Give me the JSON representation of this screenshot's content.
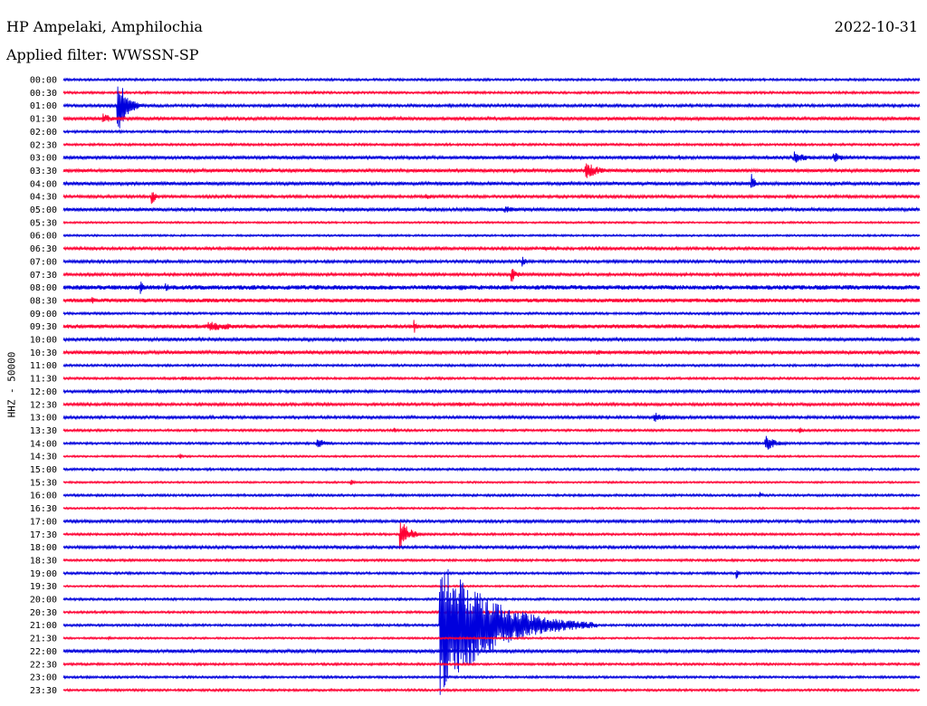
{
  "header": {
    "station": "HP Ampelaki, Amphilochia",
    "filter": "Applied filter: WWSSN-SP",
    "date": "2022-10-31"
  },
  "chart_data": {
    "type": "line",
    "title": "HP Ampelaki, Amphilochia",
    "subtitle": "Applied filter: WWSSN-SP",
    "date": "2022-10-31",
    "ylabel": "HHZ - 50000",
    "colors": {
      "even_trace": "#0000dd",
      "odd_trace": "#ff0033"
    },
    "y_ticks": [
      "00:00",
      "00:30",
      "01:00",
      "01:30",
      "02:00",
      "02:30",
      "03:00",
      "03:30",
      "04:00",
      "04:30",
      "05:00",
      "05:30",
      "06:00",
      "06:30",
      "07:00",
      "07:30",
      "08:00",
      "08:30",
      "09:00",
      "09:30",
      "10:00",
      "10:30",
      "11:00",
      "11:30",
      "12:00",
      "12:30",
      "13:00",
      "13:30",
      "14:00",
      "14:30",
      "15:00",
      "15:30",
      "16:00",
      "16:30",
      "17:00",
      "17:30",
      "18:00",
      "18:30",
      "19:00",
      "19:30",
      "20:00",
      "20:30",
      "21:00",
      "21:30",
      "22:00",
      "22:30",
      "23:00",
      "23:30"
    ],
    "x_range_minutes": [
      0,
      30
    ],
    "noise_level": [
      1.2,
      1.2,
      1.5,
      1.8,
      1.2,
      1.2,
      1.8,
      1.8,
      1.8,
      1.5,
      1.8,
      1.0,
      1.0,
      1.5,
      1.5,
      1.5,
      2.5,
      2.2,
      1.2,
      2.2,
      1.8,
      1.8,
      1.2,
      1.2,
      1.5,
      1.5,
      1.5,
      1.2,
      1.2,
      1.0,
      1.2,
      1.0,
      1.2,
      1.0,
      1.5,
      1.2,
      1.5,
      1.2,
      1.2,
      1.0,
      1.2,
      1.2,
      1.2,
      1.0,
      1.8,
      1.2,
      1.2,
      1.2
    ],
    "events": [
      {
        "trace": 2,
        "minute": 1.9,
        "amplitude": 35,
        "duration": 1.0
      },
      {
        "trace": 1,
        "minute": 2.9,
        "amplitude": 3,
        "duration": 0.3
      },
      {
        "trace": 1,
        "minute": 8.8,
        "amplitude": 3,
        "duration": 0.3
      },
      {
        "trace": 3,
        "minute": 1.4,
        "amplitude": 6,
        "duration": 1.3
      },
      {
        "trace": 4,
        "minute": 3.6,
        "amplitude": 3,
        "duration": 0.3
      },
      {
        "trace": 6,
        "minute": 25.6,
        "amplitude": 7,
        "duration": 1.5
      },
      {
        "trace": 6,
        "minute": 27.0,
        "amplitude": 6,
        "duration": 1.2
      },
      {
        "trace": 6,
        "minute": 21.6,
        "amplitude": 3,
        "duration": 0.6
      },
      {
        "trace": 7,
        "minute": 18.3,
        "amplitude": 10,
        "duration": 1.6
      },
      {
        "trace": 8,
        "minute": 24.1,
        "amplitude": 12,
        "duration": 0.4
      },
      {
        "trace": 9,
        "minute": 3.1,
        "amplitude": 10,
        "duration": 0.4
      },
      {
        "trace": 9,
        "minute": 12.7,
        "amplitude": 4,
        "duration": 1.0
      },
      {
        "trace": 10,
        "minute": 15.5,
        "amplitude": 4,
        "duration": 2.0
      },
      {
        "trace": 13,
        "minute": 16.8,
        "amplitude": 3,
        "duration": 1.2
      },
      {
        "trace": 14,
        "minute": 16.1,
        "amplitude": 6,
        "duration": 0.4
      },
      {
        "trace": 15,
        "minute": 15.7,
        "amplitude": 10,
        "duration": 0.6
      },
      {
        "trace": 16,
        "minute": 2.7,
        "amplitude": 8,
        "duration": 0.4
      },
      {
        "trace": 16,
        "minute": 3.6,
        "amplitude": 5,
        "duration": 0.6
      },
      {
        "trace": 16,
        "minute": 13.9,
        "amplitude": 5,
        "duration": 0.4
      },
      {
        "trace": 17,
        "minute": 1.0,
        "amplitude": 4,
        "duration": 0.8
      },
      {
        "trace": 19,
        "minute": 12.3,
        "amplitude": 9,
        "duration": 0.3
      },
      {
        "trace": 19,
        "minute": 5.1,
        "amplitude": 6,
        "duration": 3.4
      },
      {
        "trace": 21,
        "minute": 18.7,
        "amplitude": 3,
        "duration": 1.5
      },
      {
        "trace": 23,
        "minute": 4.2,
        "amplitude": 3,
        "duration": 1.0
      },
      {
        "trace": 25,
        "minute": 13.8,
        "amplitude": 3,
        "duration": 2.0
      },
      {
        "trace": 26,
        "minute": 20.7,
        "amplitude": 6,
        "duration": 1.5
      },
      {
        "trace": 27,
        "minute": 11.6,
        "amplitude": 3,
        "duration": 0.3
      },
      {
        "trace": 27,
        "minute": 25.8,
        "amplitude": 4,
        "duration": 0.3
      },
      {
        "trace": 28,
        "minute": 8.9,
        "amplitude": 7,
        "duration": 1.0
      },
      {
        "trace": 28,
        "minute": 24.6,
        "amplitude": 9,
        "duration": 1.2
      },
      {
        "trace": 29,
        "minute": 4.1,
        "amplitude": 3,
        "duration": 0.3
      },
      {
        "trace": 30,
        "minute": 1.0,
        "amplitude": 3,
        "duration": 0.5
      },
      {
        "trace": 31,
        "minute": 10.1,
        "amplitude": 3,
        "duration": 0.3
      },
      {
        "trace": 32,
        "minute": 24.4,
        "amplitude": 4,
        "duration": 0.3
      },
      {
        "trace": 35,
        "minute": 11.8,
        "amplitude": 18,
        "duration": 1.0
      },
      {
        "trace": 38,
        "minute": 23.6,
        "amplitude": 7,
        "duration": 0.2
      },
      {
        "trace": 40,
        "minute": 11.8,
        "amplitude": 4,
        "duration": 0.2
      },
      {
        "trace": 42,
        "minute": 13.2,
        "amplitude": 80,
        "duration": 5.5
      },
      {
        "trace": 43,
        "minute": 1.6,
        "amplitude": 3,
        "duration": 0.3
      },
      {
        "trace": 45,
        "minute": 4.7,
        "amplitude": 2,
        "duration": 0.5
      }
    ]
  }
}
